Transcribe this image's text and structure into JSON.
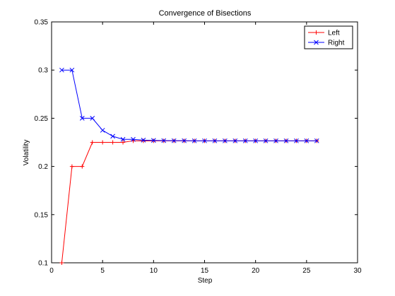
{
  "chart_data": {
    "type": "line",
    "title": "Convergence of Bisections",
    "xlabel": "Step",
    "ylabel": "Volatility",
    "xlim": [
      0,
      30
    ],
    "ylim": [
      0.1,
      0.35
    ],
    "xticks": [
      0,
      5,
      10,
      15,
      20,
      25,
      30
    ],
    "yticks": [
      0.1,
      0.15,
      0.2,
      0.25,
      0.3,
      0.35
    ],
    "xtick_labels": [
      "0",
      "5",
      "10",
      "15",
      "20",
      "25",
      "30"
    ],
    "ytick_labels": [
      "0.1",
      "0.15",
      "0.2",
      "0.25",
      "0.3",
      "0.35"
    ],
    "grid": false,
    "legend_position": "top-right",
    "x": [
      1,
      2,
      3,
      4,
      5,
      6,
      7,
      8,
      9,
      10,
      11,
      12,
      13,
      14,
      15,
      16,
      17,
      18,
      19,
      20,
      21,
      22,
      23,
      24,
      25,
      26
    ],
    "series": [
      {
        "name": "Left",
        "color": "#ff0000",
        "marker": "plus",
        "values": [
          0.1,
          0.2,
          0.2,
          0.225,
          0.225,
          0.225,
          0.225,
          0.2266,
          0.2266,
          0.2266,
          0.2266,
          0.2266,
          0.2266,
          0.2266,
          0.2266,
          0.2266,
          0.2266,
          0.2266,
          0.2266,
          0.2266,
          0.2266,
          0.2266,
          0.2266,
          0.2266,
          0.2266,
          0.2266
        ]
      },
      {
        "name": "Right",
        "color": "#0000ff",
        "marker": "x",
        "values": [
          0.3,
          0.3,
          0.25,
          0.25,
          0.2375,
          0.2313,
          0.2281,
          0.2281,
          0.2273,
          0.227,
          0.2268,
          0.2267,
          0.2267,
          0.2266,
          0.2266,
          0.2266,
          0.2266,
          0.2266,
          0.2266,
          0.2266,
          0.2266,
          0.2266,
          0.2266,
          0.2266,
          0.2266,
          0.2266
        ]
      }
    ]
  }
}
